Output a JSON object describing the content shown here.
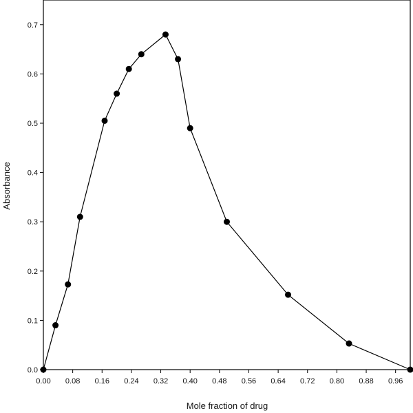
{
  "chart_data": {
    "type": "line",
    "title": "",
    "xlabel": "Mole fraction of drug",
    "ylabel": "Absorbance",
    "xlim": [
      0,
      1.0
    ],
    "ylim": [
      0,
      0.75
    ],
    "grid": false,
    "legend": "none",
    "x_ticks": [
      "0.00",
      "0.08",
      "0.16",
      "0.24",
      "0.32",
      "0.40",
      "0.48",
      "0.56",
      "0.64",
      "0.72",
      "0.80",
      "0.88",
      "0.96"
    ],
    "x_tick_values": [
      0,
      0.08,
      0.16,
      0.24,
      0.32,
      0.4,
      0.48,
      0.56,
      0.64,
      0.72,
      0.8,
      0.88,
      0.96
    ],
    "y_ticks": [
      "0.0",
      "0.1",
      "0.2",
      "0.3",
      "0.4",
      "0.5",
      "0.6",
      "0.7"
    ],
    "y_tick_values": [
      0,
      0.1,
      0.2,
      0.3,
      0.4,
      0.5,
      0.6,
      0.7
    ],
    "series": [
      {
        "x": [
          0.0,
          0.033,
          0.067,
          0.1,
          0.167,
          0.2,
          0.233,
          0.267,
          0.333,
          0.367,
          0.4,
          0.5,
          0.667,
          0.833,
          1.0
        ],
        "y": [
          0.0,
          0.09,
          0.173,
          0.31,
          0.505,
          0.56,
          0.61,
          0.64,
          0.68,
          0.63,
          0.49,
          0.3,
          0.152,
          0.053,
          0.0
        ],
        "color": "#000000",
        "marker": "circle"
      }
    ]
  }
}
